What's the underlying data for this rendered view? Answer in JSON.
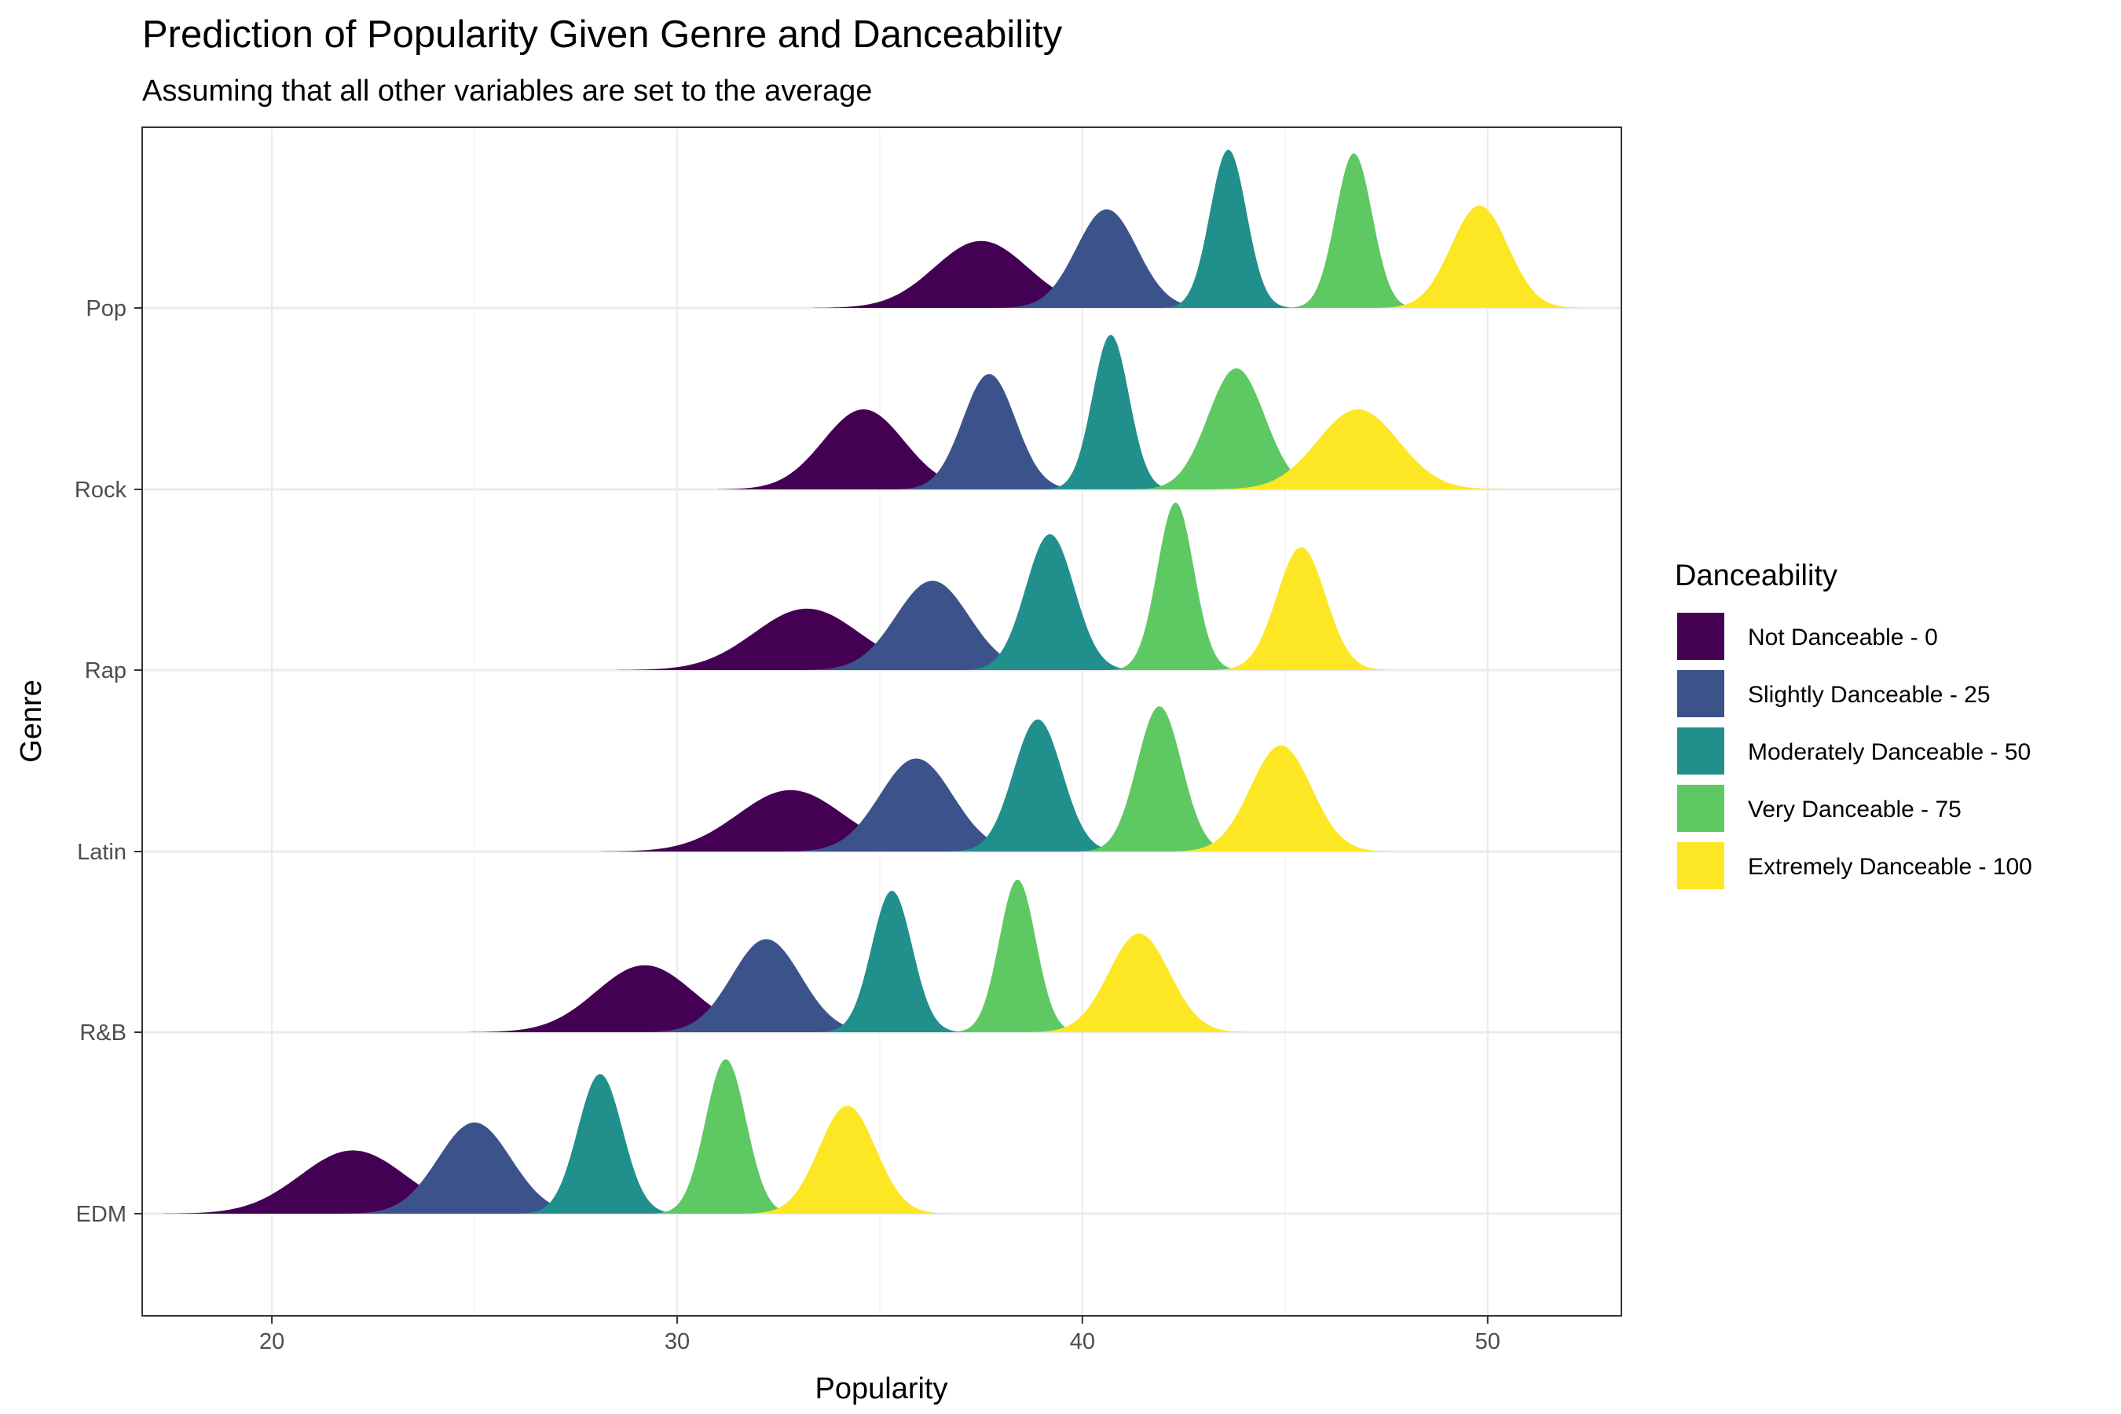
{
  "chart_data": {
    "type": "ridgeline-density",
    "title": "Prediction of Popularity Given Genre and Danceability",
    "subtitle": "Assuming that all other variables are set to the average",
    "xlabel": "Popularity",
    "ylabel": "Genre",
    "xlim": [
      16.8,
      53.3
    ],
    "x_ticks": [
      20,
      30,
      40,
      50
    ],
    "grid": true,
    "legend": {
      "title": "Danceability",
      "position": "right",
      "items": [
        {
          "label": "Not Danceable - 0",
          "color": "#440154"
        },
        {
          "label": "Slightly Danceable - 25",
          "color": "#3b528b"
        },
        {
          "label": "Moderately Danceable - 50",
          "color": "#21908c"
        },
        {
          "label": "Very Danceable - 75",
          "color": "#5ec962"
        },
        {
          "label": "Extremely Danceable - 100",
          "color": "#fde725"
        }
      ]
    },
    "genres": [
      "EDM",
      "R&B",
      "Latin",
      "Rap",
      "Rock",
      "Pop"
    ],
    "series": [
      {
        "genre": "Pop",
        "densities": [
          {
            "level": "Not Danceable - 0",
            "mode": 37.5,
            "sd": 1.15,
            "peak": 0.36
          },
          {
            "level": "Slightly Danceable - 25",
            "mode": 40.6,
            "sd": 0.75,
            "peak": 0.53
          },
          {
            "level": "Moderately Danceable - 50",
            "mode": 43.6,
            "sd": 0.45,
            "peak": 0.85
          },
          {
            "level": "Very Danceable - 75",
            "mode": 46.7,
            "sd": 0.45,
            "peak": 0.83
          },
          {
            "level": "Extremely Danceable - 100",
            "mode": 49.8,
            "sd": 0.7,
            "peak": 0.55
          }
        ]
      },
      {
        "genre": "Rock",
        "densities": [
          {
            "level": "Not Danceable - 0",
            "mode": 34.6,
            "sd": 1.0,
            "peak": 0.43
          },
          {
            "level": "Slightly Danceable - 25",
            "mode": 37.7,
            "sd": 0.65,
            "peak": 0.62
          },
          {
            "level": "Moderately Danceable - 50",
            "mode": 40.7,
            "sd": 0.45,
            "peak": 0.83
          },
          {
            "level": "Very Danceable - 75",
            "mode": 43.8,
            "sd": 0.7,
            "peak": 0.65
          },
          {
            "level": "Extremely Danceable - 100",
            "mode": 46.8,
            "sd": 1.0,
            "peak": 0.43
          }
        ]
      },
      {
        "genre": "Rap",
        "densities": [
          {
            "level": "Not Danceable - 0",
            "mode": 33.2,
            "sd": 1.3,
            "peak": 0.33
          },
          {
            "level": "Slightly Danceable - 25",
            "mode": 36.3,
            "sd": 0.9,
            "peak": 0.48
          },
          {
            "level": "Moderately Danceable - 50",
            "mode": 39.2,
            "sd": 0.6,
            "peak": 0.73
          },
          {
            "level": "Very Danceable - 75",
            "mode": 42.3,
            "sd": 0.45,
            "peak": 0.9
          },
          {
            "level": "Extremely Danceable - 100",
            "mode": 45.4,
            "sd": 0.6,
            "peak": 0.66
          }
        ]
      },
      {
        "genre": "Latin",
        "densities": [
          {
            "level": "Not Danceable - 0",
            "mode": 32.8,
            "sd": 1.3,
            "peak": 0.33
          },
          {
            "level": "Slightly Danceable - 25",
            "mode": 35.9,
            "sd": 0.9,
            "peak": 0.5
          },
          {
            "level": "Moderately Danceable - 50",
            "mode": 38.9,
            "sd": 0.6,
            "peak": 0.71
          },
          {
            "level": "Very Danceable - 75",
            "mode": 41.9,
            "sd": 0.55,
            "peak": 0.78
          },
          {
            "level": "Extremely Danceable - 100",
            "mode": 44.9,
            "sd": 0.75,
            "peak": 0.57
          }
        ]
      },
      {
        "genre": "R&B",
        "densities": [
          {
            "level": "Not Danceable - 0",
            "mode": 29.2,
            "sd": 1.2,
            "peak": 0.36
          },
          {
            "level": "Slightly Danceable - 25",
            "mode": 32.2,
            "sd": 0.85,
            "peak": 0.5
          },
          {
            "level": "Moderately Danceable - 50",
            "mode": 35.3,
            "sd": 0.5,
            "peak": 0.76
          },
          {
            "level": "Very Danceable - 75",
            "mode": 38.4,
            "sd": 0.45,
            "peak": 0.82
          },
          {
            "level": "Extremely Danceable - 100",
            "mode": 41.4,
            "sd": 0.75,
            "peak": 0.53
          }
        ]
      },
      {
        "genre": "EDM",
        "densities": [
          {
            "level": "Not Danceable - 0",
            "mode": 22.0,
            "sd": 1.3,
            "peak": 0.34
          },
          {
            "level": "Slightly Danceable - 25",
            "mode": 25.0,
            "sd": 0.9,
            "peak": 0.49
          },
          {
            "level": "Moderately Danceable - 50",
            "mode": 28.1,
            "sd": 0.55,
            "peak": 0.75
          },
          {
            "level": "Very Danceable - 75",
            "mode": 31.2,
            "sd": 0.5,
            "peak": 0.83
          },
          {
            "level": "Extremely Danceable - 100",
            "mode": 34.2,
            "sd": 0.7,
            "peak": 0.58
          }
        ]
      }
    ]
  }
}
